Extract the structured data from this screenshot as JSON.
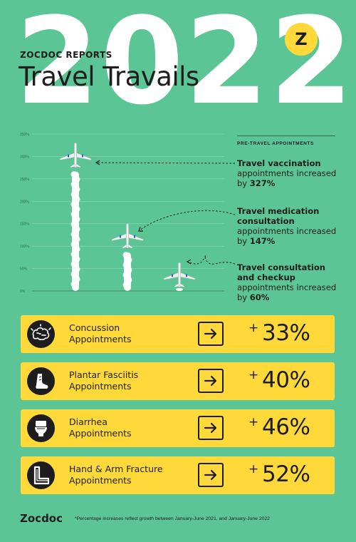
{
  "header": {
    "year": "2022",
    "brand_mark": "Z",
    "reports_label": "ZOCDOC REPORTS",
    "title": "Travel Travails"
  },
  "chart_data": {
    "type": "bar",
    "categories": [
      "Travel vaccination",
      "Travel medication consultation",
      "Travel consultation and checkup"
    ],
    "values": [
      327,
      147,
      60
    ],
    "ylim": [
      0,
      350
    ],
    "yticks": [
      "0%",
      "50%",
      "100%",
      "150%",
      "200%",
      "250%",
      "300%",
      "350%"
    ],
    "grid": true,
    "mark_style": "airplane-contrail"
  },
  "side_panel": {
    "header": "PRE-TRAVEL APPOINTMENTS",
    "callouts": [
      {
        "bold": "Travel vaccination",
        "text": " appointments increased by ",
        "value": "327%"
      },
      {
        "bold": "Travel medication consultation",
        "text": " appointments increased by ",
        "value": "147%"
      },
      {
        "bold": "Travel consultation and checkup",
        "text": " appointments increased by ",
        "value": "60%"
      }
    ]
  },
  "cards": [
    {
      "icon": "brain-icon",
      "line1": "Concussion",
      "line2": "Appointments",
      "plus": "+",
      "value": "33%"
    },
    {
      "icon": "foot-icon",
      "line1": "Plantar Fasciitis",
      "line2": "Appointments",
      "plus": "+",
      "value": "40%"
    },
    {
      "icon": "toilet-icon",
      "line1": "Diarrhea",
      "line2": "Appointments",
      "plus": "+",
      "value": "46%"
    },
    {
      "icon": "arm-cast-icon",
      "line1": "Hand & Arm Fracture",
      "line2": "Appointments",
      "plus": "+",
      "value": "52%"
    }
  ],
  "footer": {
    "logo": "Zocdoc",
    "note": "*Percentage increases reflect growth between January-June 2021, and January-June 2022"
  },
  "colors": {
    "background": "#5cc595",
    "accent_yellow": "#ffd83a",
    "ink": "#1d1d1d",
    "contrail": "#ffffff"
  }
}
